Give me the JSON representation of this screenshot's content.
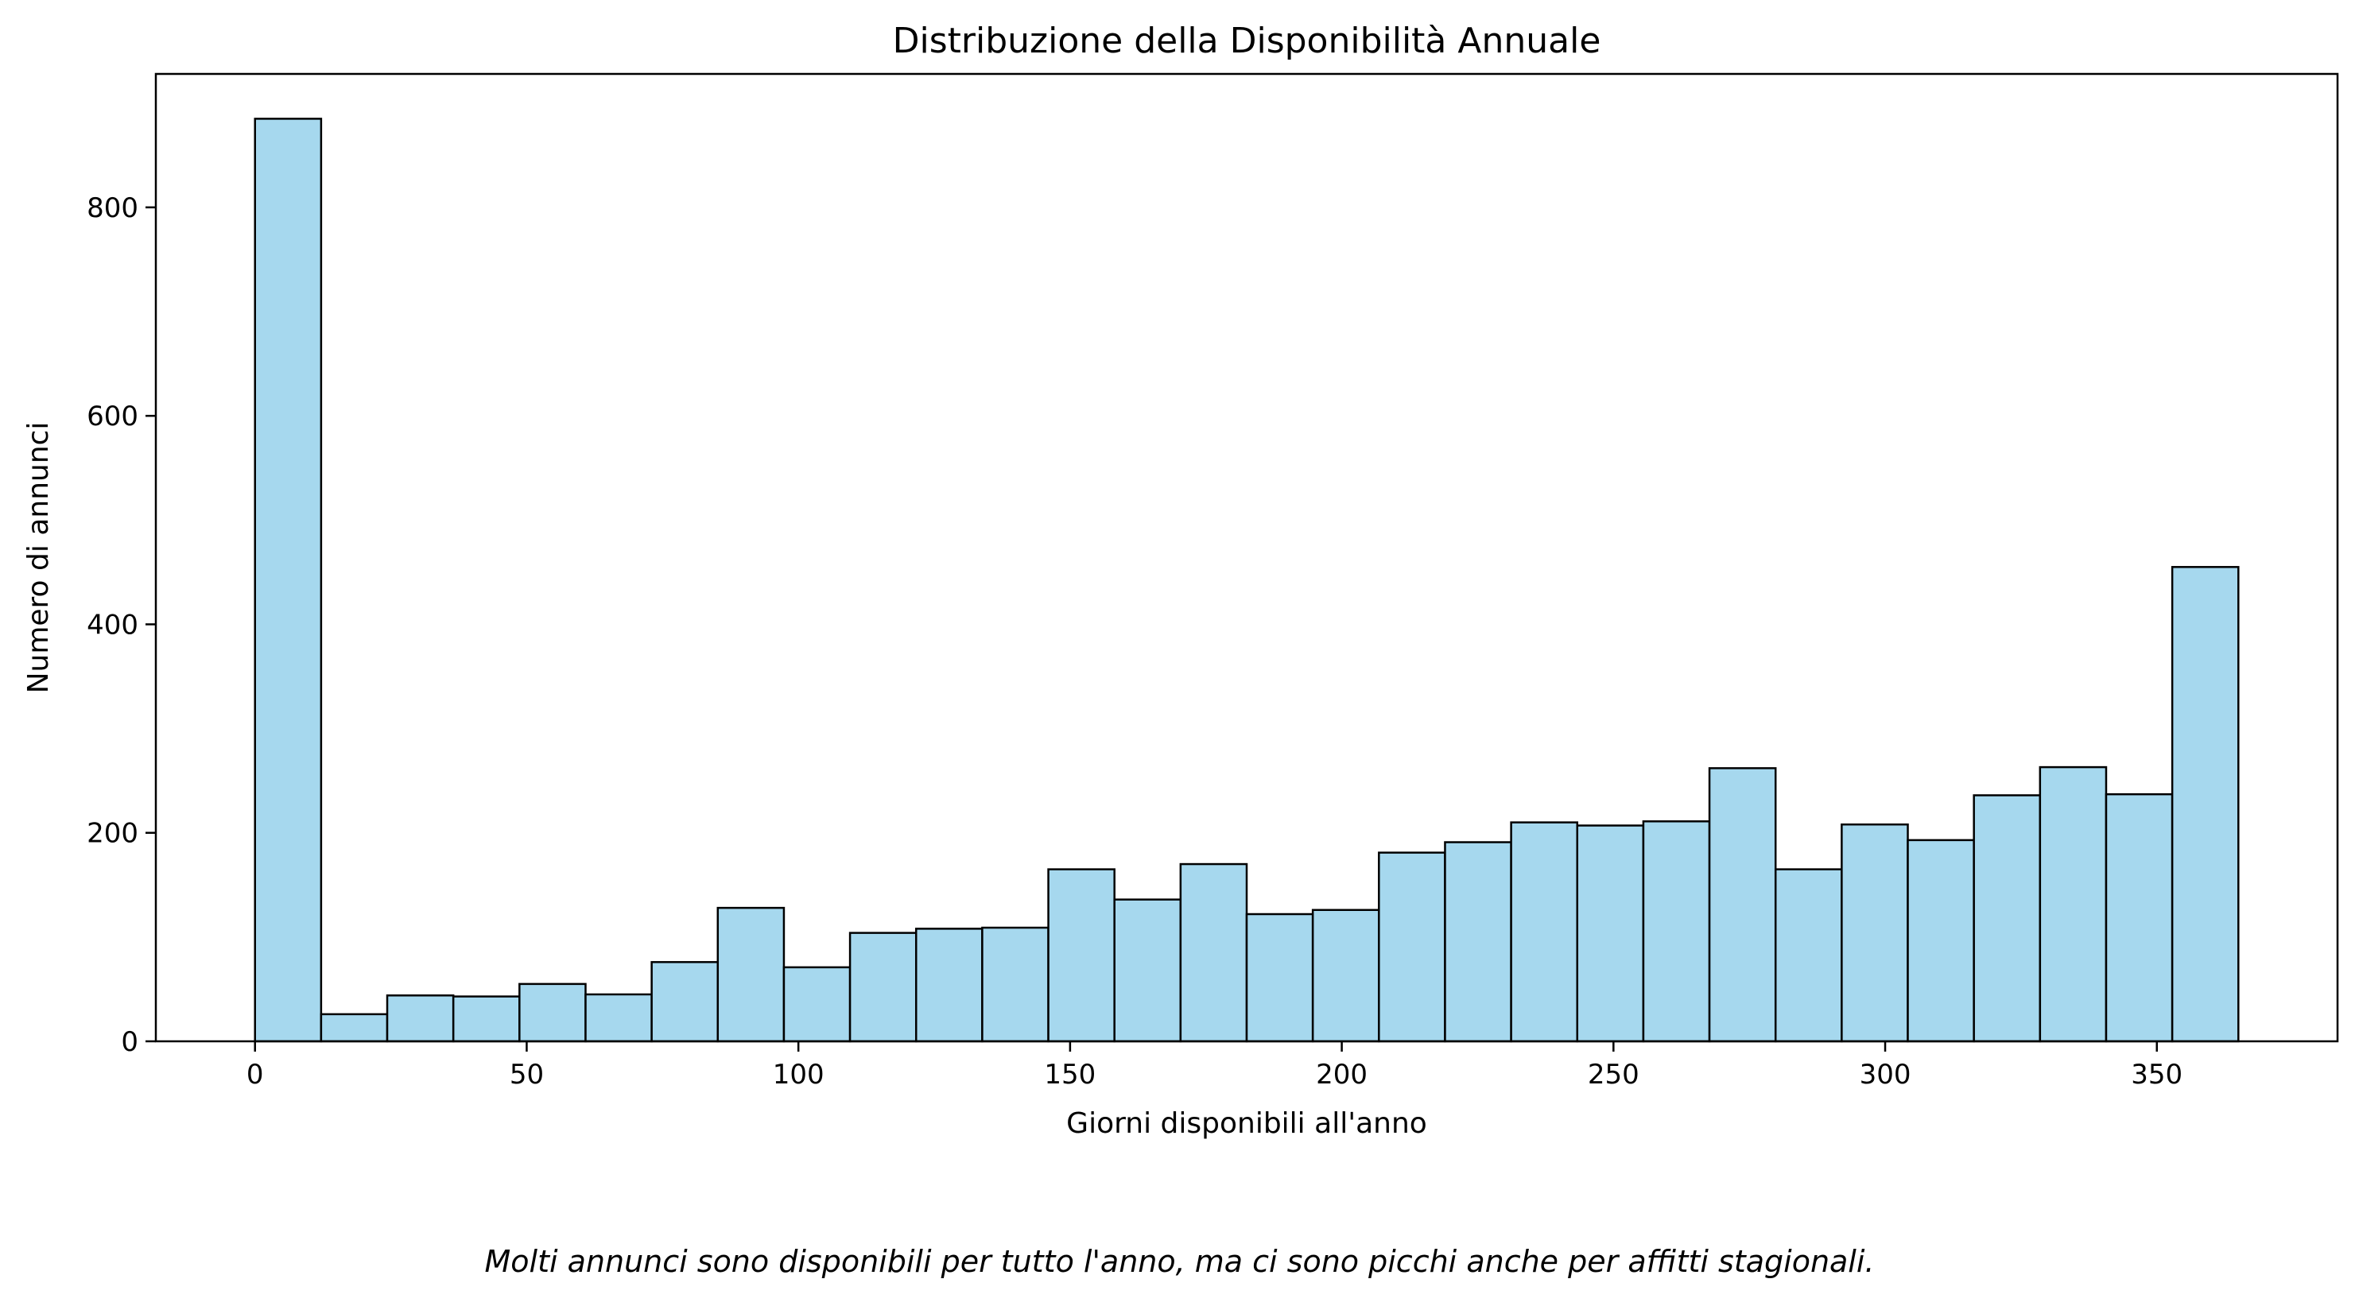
{
  "chart_data": {
    "type": "bar",
    "title": "Distribuzione della Disponibilità Annuale",
    "xlabel": "Giorni disponibili all'anno",
    "ylabel": "Numero di annunci",
    "xlim": [
      -18.25,
      383.25
    ],
    "ylim": [
      0,
      928
    ],
    "xticks": [
      0,
      50,
      100,
      150,
      200,
      250,
      300,
      350
    ],
    "yticks": [
      0,
      200,
      400,
      600,
      800
    ],
    "grid": false,
    "bin_start": 0,
    "bin_width": 12.1667,
    "values": [
      885,
      26,
      44,
      43,
      55,
      45,
      76,
      128,
      71,
      104,
      108,
      109,
      165,
      136,
      170,
      122,
      126,
      181,
      191,
      210,
      207,
      211,
      262,
      165,
      208,
      193,
      236,
      263,
      237,
      455
    ],
    "bar_color": "#a6d8ee",
    "edge_color": "#000000"
  },
  "caption": "Molti annunci sono disponibili per tutto l'anno, ma ci sono picchi anche per affitti stagionali."
}
